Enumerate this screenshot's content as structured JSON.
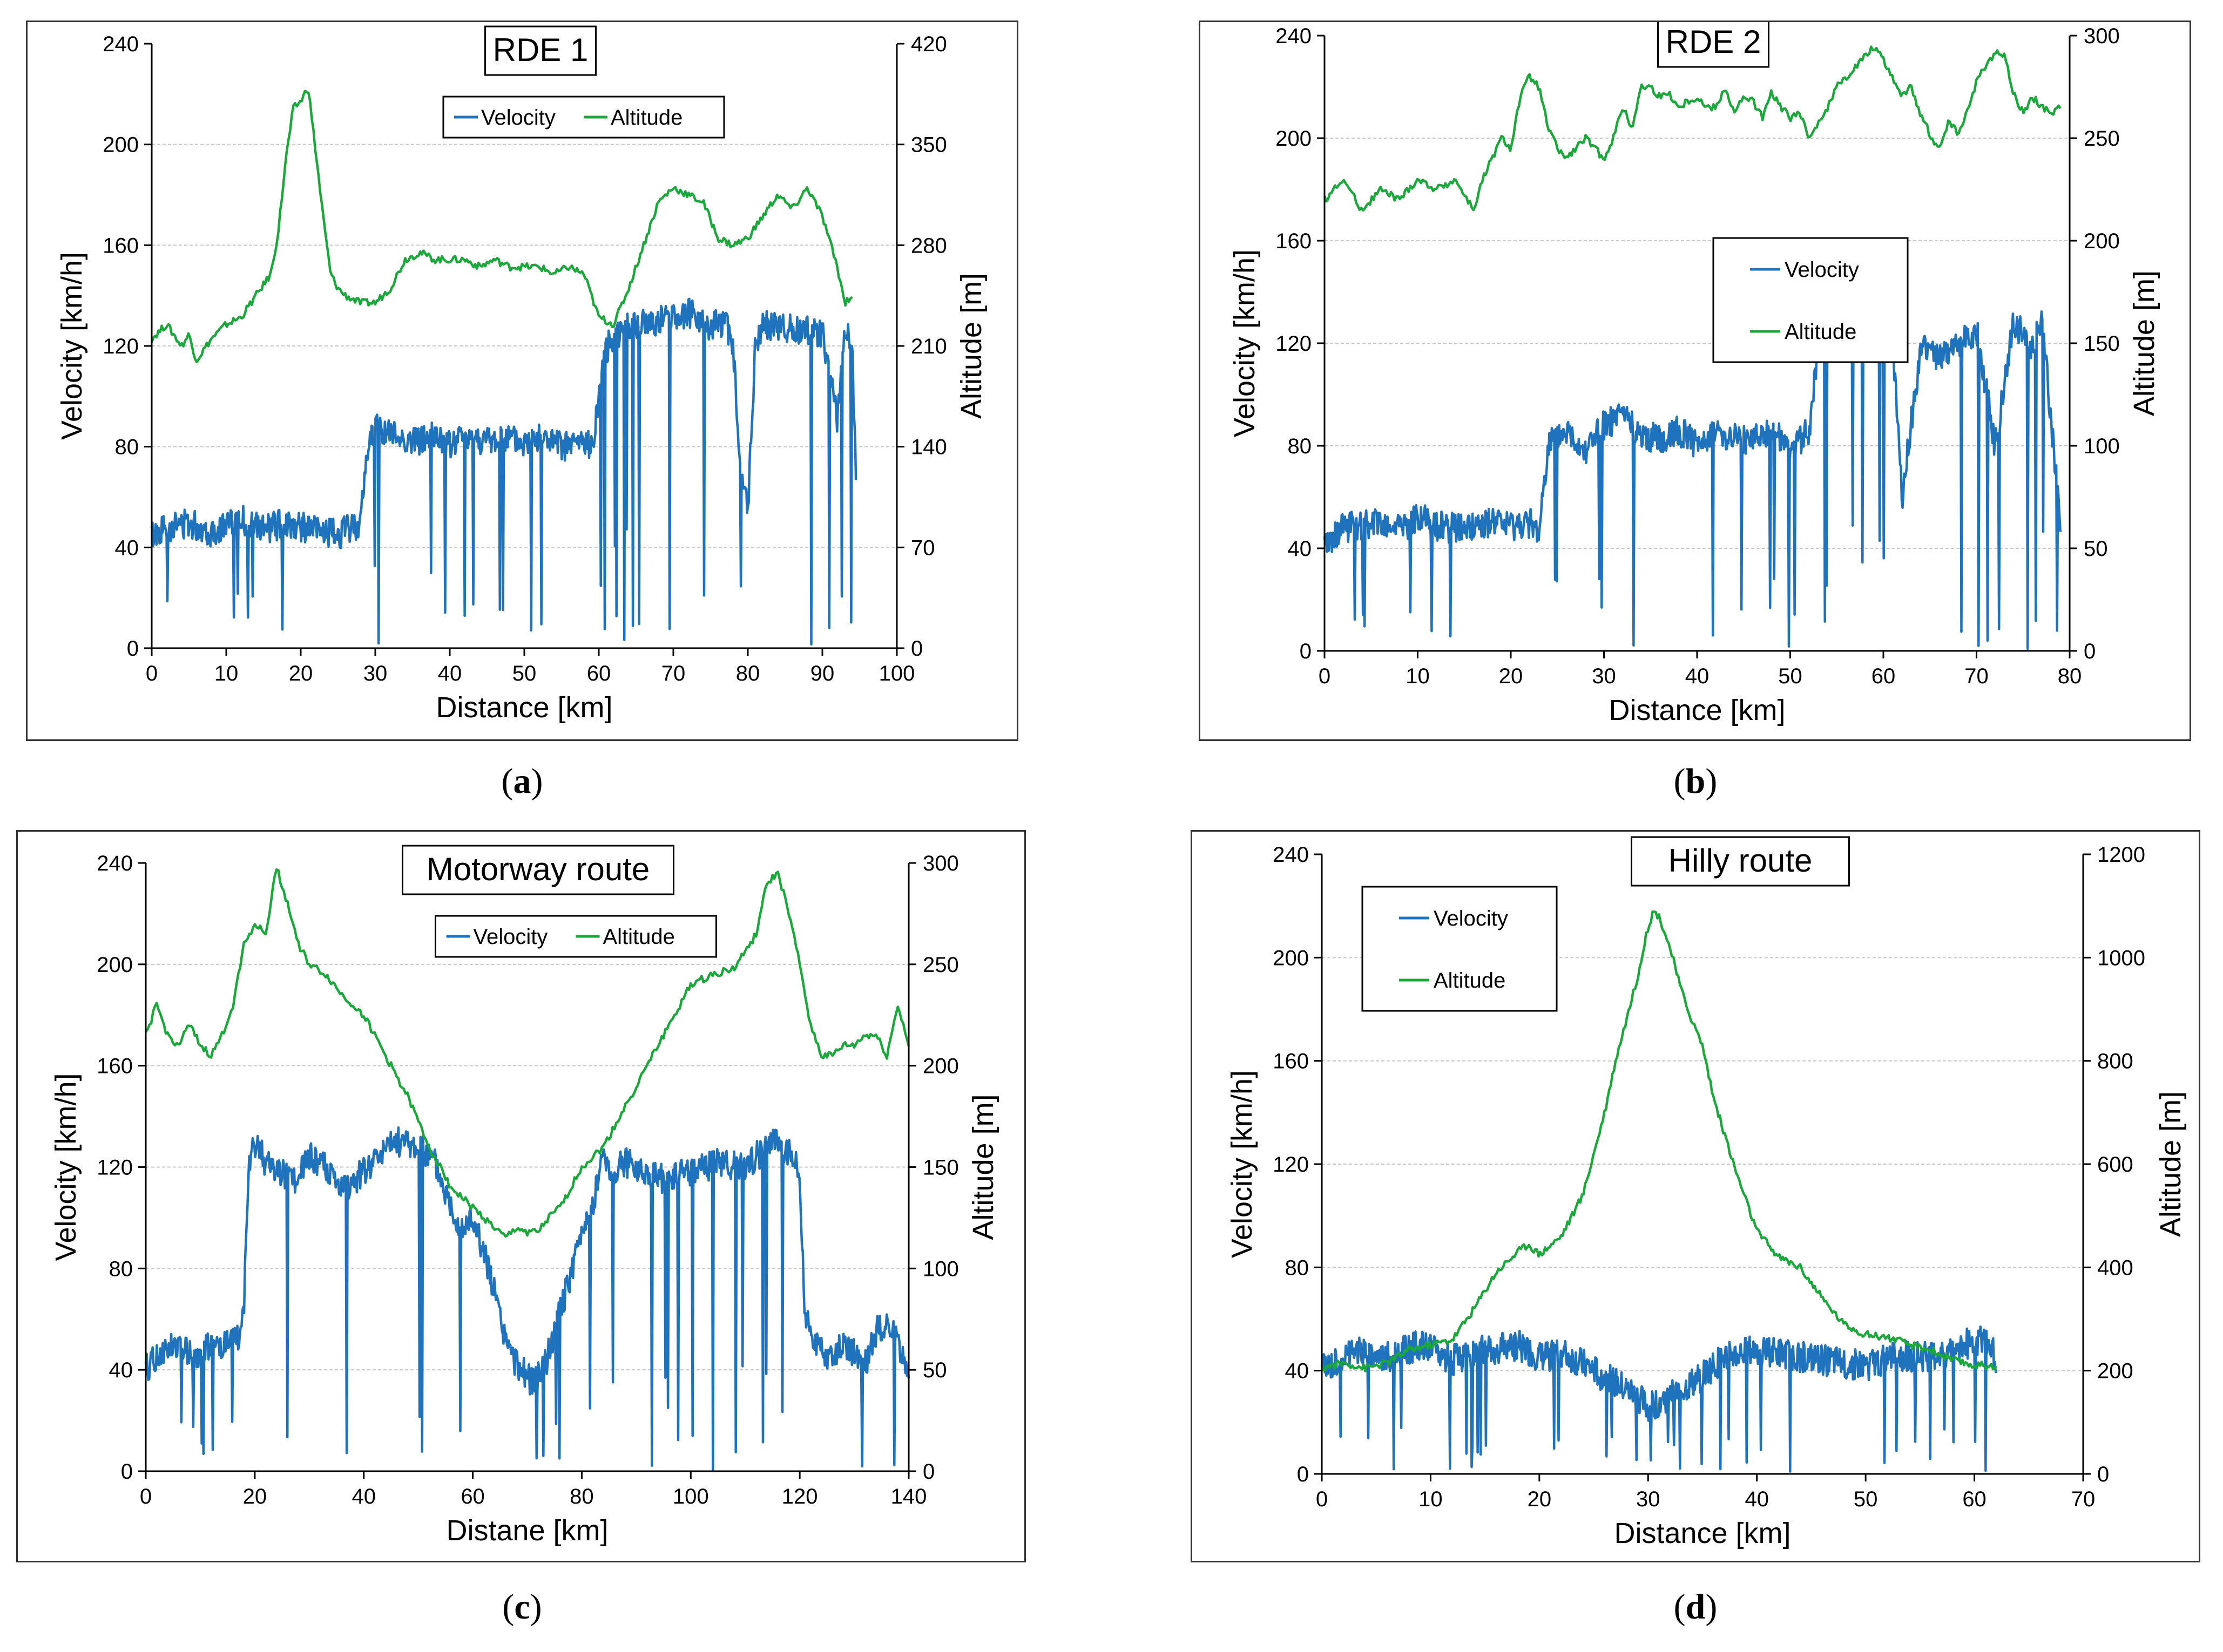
{
  "colors": {
    "velocity": "#1f73bd",
    "altitude": "#1aa83a",
    "grid": "#c8c8c8",
    "axis": "#000000"
  },
  "chart_data": [
    {
      "id": "a",
      "type": "line",
      "title": "RDE 1",
      "caption_letter": "a",
      "xlabel": "Distance [km]",
      "ylabel": "Velocity [km/h]",
      "y2label": "Altitude [m]",
      "xlim": [
        0,
        100
      ],
      "xticks": [
        0,
        10,
        20,
        30,
        40,
        50,
        60,
        70,
        80,
        90,
        100
      ],
      "ylim": [
        0,
        240
      ],
      "yticks": [
        0,
        40,
        80,
        120,
        160,
        200,
        240
      ],
      "y2lim": [
        0,
        420
      ],
      "y2ticks": [
        0,
        70,
        140,
        210,
        280,
        350,
        420
      ],
      "legend": "top-center",
      "legend_layout": "row",
      "series": [
        {
          "name": "Velocity",
          "axis": "left",
          "x": [
            0,
            2,
            5,
            8,
            10,
            12,
            15,
            18,
            20,
            22,
            25,
            28,
            29,
            30,
            32,
            35,
            38,
            40,
            42,
            45,
            48,
            50,
            52,
            55,
            58,
            59,
            60,
            61,
            62,
            65,
            68,
            70,
            72,
            75,
            77,
            78,
            79,
            80,
            81,
            82,
            85,
            88,
            90,
            91,
            92,
            93,
            94,
            94.5
          ],
          "y": [
            45,
            48,
            50,
            46,
            49,
            51,
            47,
            50,
            48,
            47,
            45,
            50,
            80,
            88,
            85,
            82,
            84,
            80,
            85,
            82,
            83,
            81,
            84,
            80,
            82,
            79,
            100,
            118,
            125,
            128,
            130,
            132,
            133,
            128,
            130,
            120,
            70,
            55,
            120,
            128,
            127,
            126,
            125,
            110,
            90,
            125,
            120,
            70
          ]
        },
        {
          "name": "Altitude",
          "axis": "right",
          "x": [
            0,
            2,
            4,
            5,
            6,
            8,
            10,
            12,
            14,
            16,
            17,
            18,
            19,
            20,
            21,
            22,
            23,
            24,
            25,
            26,
            28,
            30,
            32,
            34,
            36,
            38,
            40,
            42,
            44,
            46,
            48,
            50,
            52,
            54,
            56,
            58,
            60,
            62,
            64,
            66,
            68,
            70,
            72,
            74,
            76,
            78,
            80,
            82,
            84,
            86,
            88,
            90,
            92,
            93,
            94
          ],
          "y": [
            215,
            225,
            210,
            218,
            200,
            215,
            225,
            230,
            245,
            260,
            290,
            340,
            375,
            380,
            390,
            345,
            300,
            260,
            250,
            245,
            240,
            240,
            250,
            270,
            275,
            270,
            270,
            270,
            265,
            270,
            265,
            265,
            265,
            260,
            265,
            260,
            230,
            225,
            250,
            280,
            310,
            320,
            315,
            310,
            285,
            280,
            285,
            300,
            315,
            305,
            320,
            300,
            265,
            240,
            245
          ]
        }
      ]
    },
    {
      "id": "b",
      "type": "line",
      "title": "RDE 2",
      "caption_letter": "b",
      "xlabel": "Distance [km]",
      "ylabel": "Velocity [km/h]",
      "y2label": "Altitude [m]",
      "xlim": [
        0,
        80
      ],
      "xticks": [
        0,
        10,
        20,
        30,
        40,
        50,
        60,
        70,
        80
      ],
      "ylim": [
        0,
        240
      ],
      "yticks": [
        0,
        40,
        80,
        120,
        160,
        200,
        240
      ],
      "y2lim": [
        0,
        300
      ],
      "y2ticks": [
        0,
        50,
        100,
        150,
        200,
        250,
        300
      ],
      "legend": "center",
      "legend_layout": "column",
      "series": [
        {
          "name": "Velocity",
          "axis": "left",
          "x": [
            0,
            2,
            5,
            8,
            10,
            12,
            15,
            18,
            20,
            22,
            23,
            24,
            26,
            28,
            30,
            32,
            34,
            36,
            38,
            40,
            42,
            45,
            48,
            50,
            52,
            53,
            55,
            57,
            59,
            61,
            62,
            64,
            66,
            68,
            70,
            72,
            74,
            76,
            77,
            78,
            79
          ],
          "y": [
            42,
            48,
            50,
            47,
            52,
            49,
            47,
            50,
            48,
            50,
            45,
            80,
            85,
            78,
            88,
            92,
            85,
            82,
            86,
            80,
            84,
            82,
            85,
            80,
            85,
            118,
            125,
            128,
            127,
            120,
            60,
            118,
            115,
            120,
            125,
            80,
            128,
            118,
            132,
            90,
            50
          ]
        },
        {
          "name": "Altitude",
          "axis": "right",
          "x": [
            0,
            2,
            4,
            6,
            8,
            10,
            12,
            14,
            16,
            17,
            18,
            19,
            20,
            21,
            22,
            23,
            24,
            25,
            26,
            27,
            28,
            29,
            30,
            31,
            32,
            33,
            34,
            35,
            36,
            37,
            38,
            39,
            40,
            41,
            42,
            43,
            44,
            45,
            46,
            47,
            48,
            49,
            50,
            51,
            52,
            53,
            54,
            55,
            56,
            57,
            58,
            59,
            60,
            61,
            62,
            63,
            64,
            65,
            66,
            67,
            68,
            69,
            70,
            71,
            72,
            73,
            74,
            75,
            76,
            77,
            78,
            79
          ],
          "y": [
            220,
            230,
            215,
            225,
            220,
            230,
            225,
            230,
            215,
            230,
            240,
            250,
            245,
            270,
            280,
            275,
            255,
            245,
            240,
            245,
            250,
            245,
            240,
            250,
            265,
            255,
            275,
            275,
            270,
            272,
            265,
            268,
            270,
            265,
            265,
            275,
            262,
            270,
            268,
            260,
            272,
            265,
            260,
            262,
            250,
            258,
            265,
            275,
            280,
            285,
            290,
            295,
            288,
            280,
            270,
            275,
            262,
            252,
            245,
            258,
            252,
            262,
            278,
            285,
            292,
            290,
            272,
            262,
            270,
            266,
            262,
            265
          ]
        }
      ]
    },
    {
      "id": "c",
      "type": "line",
      "title": "Motorway route",
      "caption_letter": "c",
      "xlabel": "Distane [km]",
      "ylabel": "Velocity [km/h]",
      "y2label": "Altitude [m]",
      "xlim": [
        0,
        140
      ],
      "xticks": [
        0,
        20,
        40,
        60,
        80,
        100,
        120,
        140
      ],
      "ylim": [
        0,
        240
      ],
      "yticks": [
        0,
        40,
        80,
        120,
        160,
        200,
        240
      ],
      "y2lim": [
        0,
        300
      ],
      "y2ticks": [
        0,
        50,
        100,
        150,
        200,
        250,
        300
      ],
      "legend": "top-center",
      "legend_layout": "row",
      "series": [
        {
          "name": "Velocity",
          "axis": "left",
          "x": [
            0,
            3,
            6,
            9,
            12,
            15,
            17,
            18,
            19,
            20,
            22,
            25,
            28,
            30,
            33,
            36,
            40,
            43,
            46,
            50,
            53,
            55,
            58,
            60,
            63,
            65,
            67,
            69,
            71,
            73,
            75,
            77,
            79,
            80,
            82,
            84,
            86,
            88,
            90,
            95,
            100,
            105,
            110,
            115,
            118,
            120,
            121,
            122,
            124,
            126,
            128,
            130,
            132,
            134,
            136,
            138,
            140
          ],
          "y": [
            40,
            48,
            50,
            46,
            49,
            50,
            52,
            65,
            120,
            130,
            122,
            118,
            115,
            125,
            120,
            110,
            118,
            125,
            130,
            128,
            122,
            110,
            95,
            100,
            80,
            60,
            45,
            40,
            35,
            40,
            55,
            70,
            85,
            95,
            105,
            125,
            118,
            122,
            120,
            115,
            118,
            122,
            120,
            130,
            125,
            118,
            60,
            55,
            48,
            45,
            50,
            47,
            42,
            55,
            60,
            50,
            40
          ]
        },
        {
          "name": "Altitude",
          "axis": "right",
          "x": [
            0,
            2,
            4,
            6,
            8,
            10,
            12,
            14,
            16,
            18,
            20,
            22,
            24,
            26,
            28,
            30,
            33,
            36,
            40,
            44,
            48,
            52,
            56,
            60,
            64,
            66,
            68,
            70,
            72,
            74,
            76,
            78,
            80,
            84,
            88,
            92,
            96,
            100,
            104,
            108,
            112,
            114,
            116,
            118,
            120,
            122,
            124,
            126,
            128,
            130,
            132,
            134,
            136,
            138,
            140
          ],
          "y": [
            215,
            230,
            215,
            210,
            220,
            210,
            205,
            215,
            230,
            260,
            270,
            265,
            298,
            280,
            260,
            250,
            245,
            235,
            225,
            205,
            185,
            160,
            140,
            130,
            120,
            115,
            120,
            118,
            118,
            125,
            130,
            140,
            150,
            160,
            180,
            200,
            220,
            240,
            245,
            248,
            265,
            290,
            295,
            275,
            250,
            220,
            205,
            205,
            210,
            210,
            215,
            215,
            205,
            230,
            210
          ]
        }
      ]
    },
    {
      "id": "d",
      "type": "line",
      "title": "Hilly route",
      "caption_letter": "d",
      "xlabel": "Distance [km]",
      "ylabel": "Velocity [km/h]",
      "y2label": "Altitude [m]",
      "xlim": [
        0,
        70
      ],
      "xticks": [
        0,
        10,
        20,
        30,
        40,
        50,
        60,
        70
      ],
      "ylim": [
        0,
        240
      ],
      "yticks": [
        0,
        40,
        80,
        120,
        160,
        200,
        240
      ],
      "y2lim": [
        0,
        1200
      ],
      "y2ticks": [
        0,
        200,
        400,
        600,
        800,
        1000,
        1200
      ],
      "legend": "top-left",
      "legend_layout": "column",
      "series": [
        {
          "name": "Velocity",
          "axis": "left",
          "x": [
            0,
            3,
            6,
            9,
            12,
            15,
            18,
            20,
            22,
            25,
            27,
            29,
            30,
            31,
            33,
            35,
            37,
            40,
            43,
            46,
            50,
            53,
            56,
            59,
            61,
            62
          ],
          "y": [
            40,
            48,
            45,
            50,
            44,
            48,
            50,
            45,
            47,
            40,
            35,
            30,
            25,
            28,
            32,
            38,
            45,
            48,
            46,
            44,
            42,
            46,
            45,
            50,
            52,
            45
          ]
        },
        {
          "name": "Altitude",
          "axis": "right",
          "x": [
            0,
            2,
            4,
            6,
            8,
            10,
            12,
            14,
            16,
            18,
            19,
            20,
            22,
            24,
            26,
            27,
            28,
            29,
            30,
            30.5,
            31,
            32,
            33,
            34,
            35,
            36,
            38,
            40,
            42,
            44,
            46,
            48,
            50,
            52,
            54,
            56,
            58,
            60,
            62
          ],
          "y": [
            205,
            215,
            205,
            215,
            240,
            250,
            260,
            320,
            390,
            430,
            445,
            425,
            460,
            540,
            700,
            800,
            880,
            960,
            1060,
            1090,
            1080,
            1020,
            940,
            880,
            830,
            730,
            590,
            470,
            420,
            400,
            340,
            290,
            270,
            265,
            250,
            240,
            220,
            210,
            210
          ]
        }
      ]
    }
  ]
}
